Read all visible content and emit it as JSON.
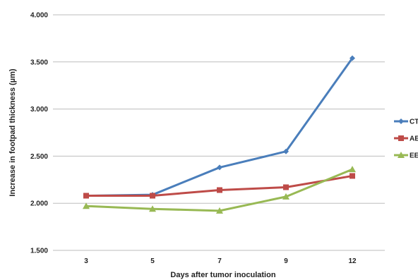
{
  "chart_data": {
    "type": "line",
    "title": "",
    "xlabel": "Days after tumor inoculation",
    "ylabel": "Increase in footpad thickness (µm)",
    "categories": [
      "3",
      "5",
      "7",
      "9",
      "12"
    ],
    "ylim": [
      1.5,
      4.0
    ],
    "yticks": [
      1.5,
      2.0,
      2.5,
      3.0,
      3.5,
      4.0
    ],
    "ytick_labels": [
      "1.500",
      "2.000",
      "2.500",
      "3.000",
      "3.500",
      "4.000"
    ],
    "grid": "horizontal",
    "legend_position": "right",
    "series": [
      {
        "name": "CT",
        "values": [
          2.08,
          2.09,
          2.38,
          2.55,
          3.54
        ],
        "color": "#4a7ebb",
        "marker": "diamond"
      },
      {
        "name": "AE",
        "values": [
          2.08,
          2.08,
          2.14,
          2.17,
          2.29
        ],
        "color": "#be4b48",
        "marker": "square"
      },
      {
        "name": "EE",
        "values": [
          1.97,
          1.94,
          1.92,
          2.07,
          2.36
        ],
        "color": "#98b954",
        "marker": "triangle"
      }
    ]
  }
}
